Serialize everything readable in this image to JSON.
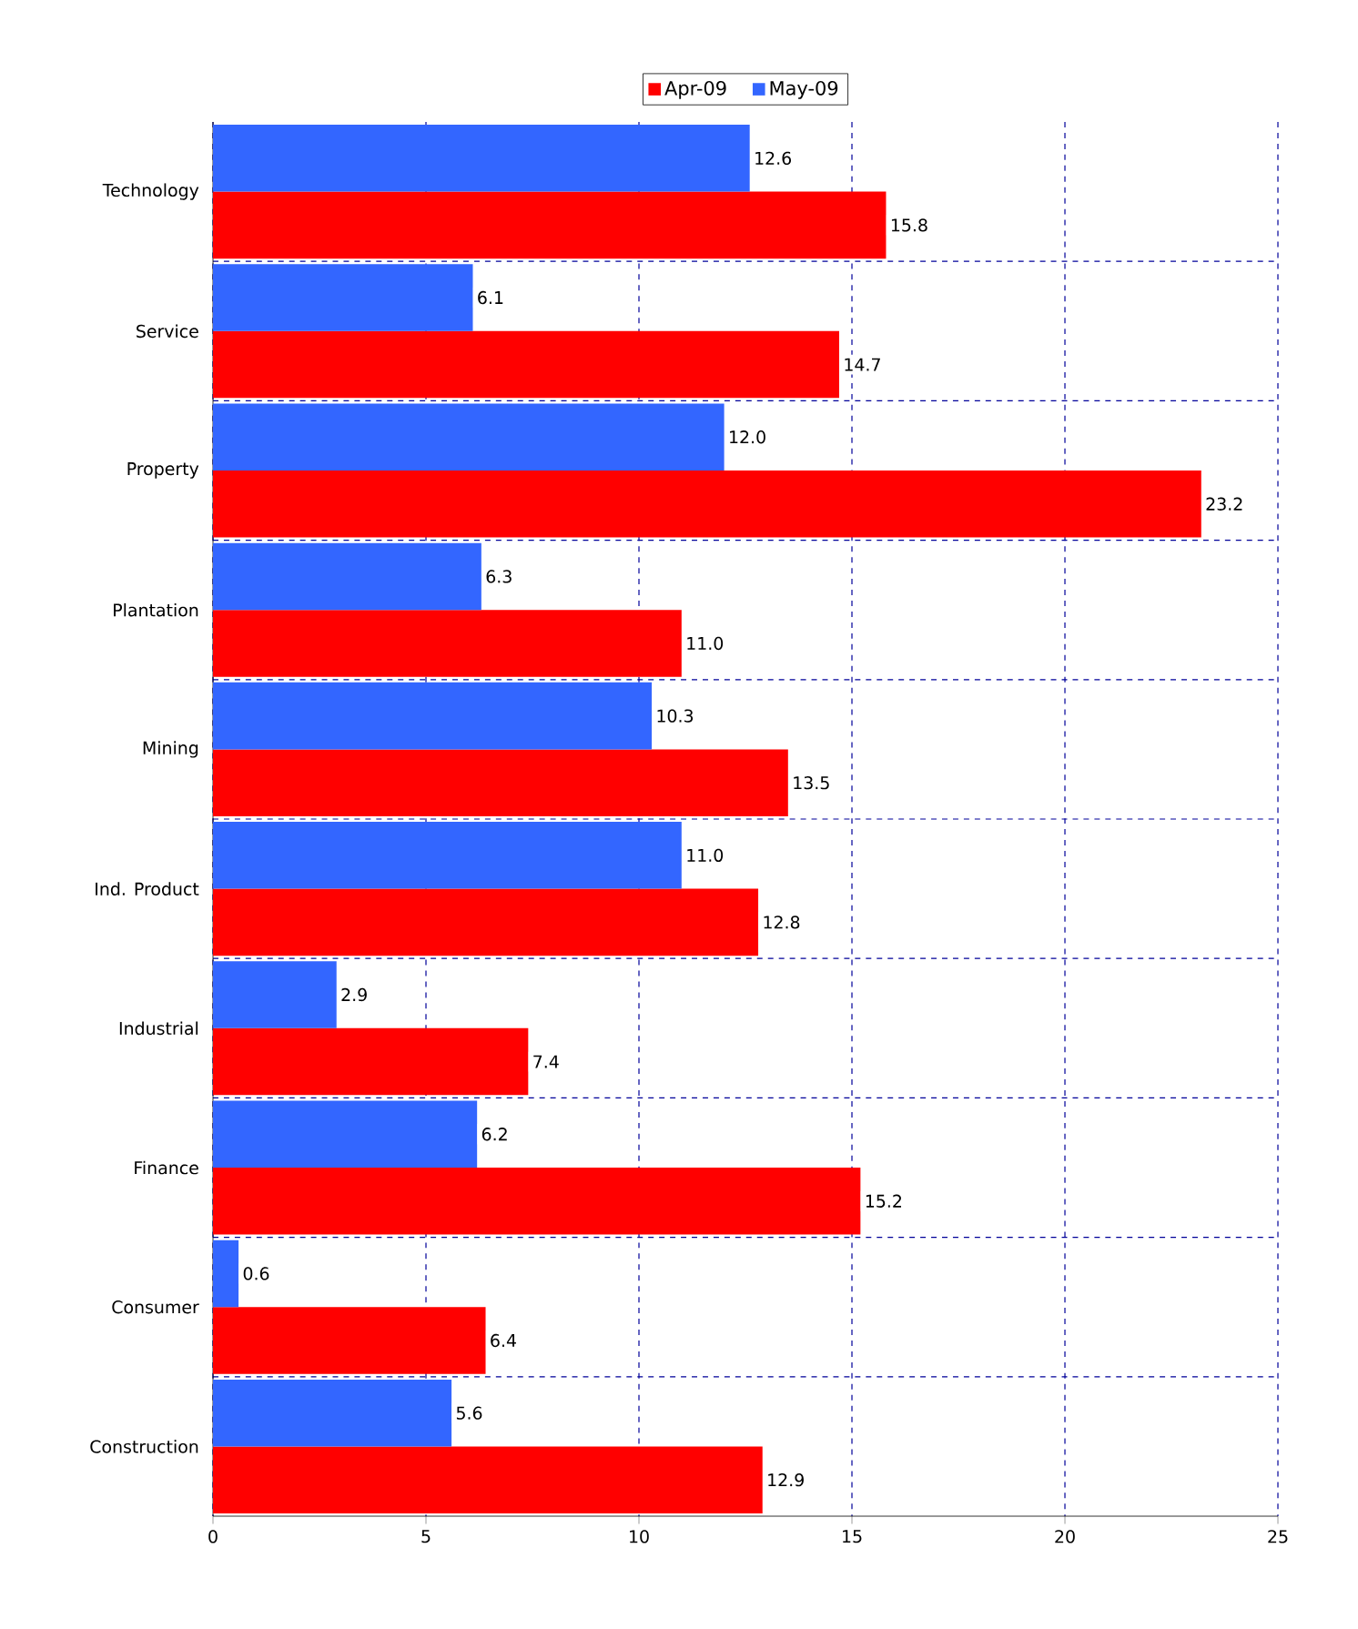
{
  "chart_data": {
    "type": "bar",
    "orientation": "horizontal",
    "categories": [
      "Technology",
      "Service",
      "Property",
      "Plantation",
      "Mining",
      "Ind. Product",
      "Industrial",
      "Finance",
      "Consumer",
      "Construction"
    ],
    "series": [
      {
        "name": "Apr-09",
        "color": "#ff0000",
        "values": [
          15.8,
          14.7,
          23.2,
          11.0,
          13.5,
          12.8,
          7.4,
          15.2,
          6.4,
          12.9
        ],
        "value_labels": [
          "15.8",
          "14.7",
          "23.2",
          "11.0",
          "13.5",
          "12.8",
          "7.4",
          "15.2",
          "6.4",
          "12.9"
        ]
      },
      {
        "name": "May-09",
        "color": "#3366ff",
        "values": [
          12.6,
          6.1,
          12.0,
          6.3,
          10.3,
          11.0,
          2.9,
          6.2,
          0.6,
          5.6
        ],
        "value_labels": [
          "12.6",
          "6.1",
          "12.0",
          "6.3",
          "10.3",
          "11.0",
          "2.9",
          "6.2",
          "0.6",
          "5.6"
        ]
      }
    ],
    "xlim": [
      0,
      25
    ],
    "xticks": [
      0,
      5,
      10,
      15,
      20,
      25
    ],
    "grid": true,
    "legend": "top"
  }
}
